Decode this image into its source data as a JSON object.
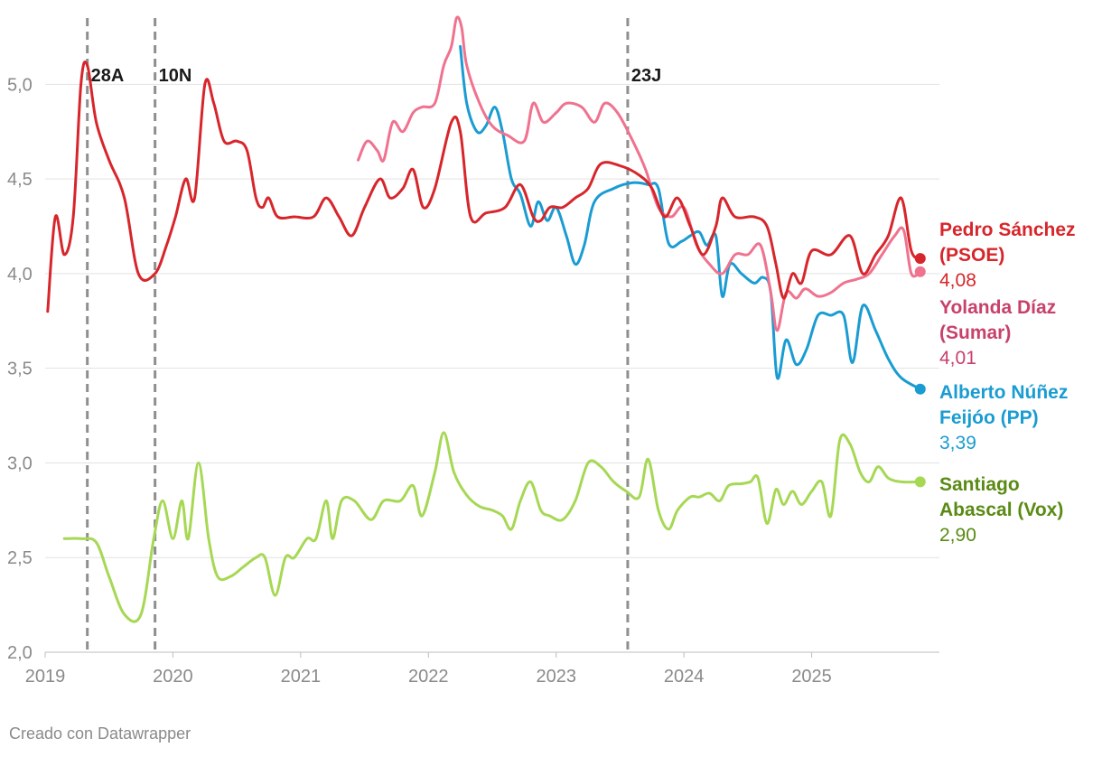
{
  "footer": {
    "credit": "Creado con Datawrapper"
  },
  "chart_data": {
    "type": "line",
    "ylim": [
      2.0,
      5.35
    ],
    "yticks": [
      {
        "value": 2.0,
        "label": "2,0"
      },
      {
        "value": 2.5,
        "label": "2,5"
      },
      {
        "value": 3.0,
        "label": "3,0"
      },
      {
        "value": 3.5,
        "label": "3,5"
      },
      {
        "value": 4.0,
        "label": "4,0"
      },
      {
        "value": 4.5,
        "label": "4,5"
      },
      {
        "value": 5.0,
        "label": "5,0"
      }
    ],
    "xlim": [
      2019.0,
      2026.0
    ],
    "xticks": [
      {
        "value": 2019,
        "label": "2019"
      },
      {
        "value": 2020,
        "label": "2020"
      },
      {
        "value": 2021,
        "label": "2021"
      },
      {
        "value": 2022,
        "label": "2022"
      },
      {
        "value": 2023,
        "label": "2023"
      },
      {
        "value": 2024,
        "label": "2024"
      },
      {
        "value": 2025,
        "label": "2025"
      }
    ],
    "grid": true,
    "events": [
      {
        "x": 2019.33,
        "label": "28A"
      },
      {
        "x": 2019.86,
        "label": "10N"
      },
      {
        "x": 2023.56,
        "label": "23J"
      }
    ],
    "series": [
      {
        "name": "Pedro Sánchez (PSOE)",
        "name_lines": [
          "Pedro Sánchez",
          "(PSOE)"
        ],
        "color": "#d7262b",
        "value_color": "#d7262b",
        "end_label": "4,08",
        "points": [
          [
            2019.02,
            3.8
          ],
          [
            2019.08,
            4.3
          ],
          [
            2019.15,
            4.1
          ],
          [
            2019.22,
            4.3
          ],
          [
            2019.28,
            5.0
          ],
          [
            2019.33,
            5.1
          ],
          [
            2019.4,
            4.8
          ],
          [
            2019.5,
            4.6
          ],
          [
            2019.62,
            4.4
          ],
          [
            2019.73,
            4.0
          ],
          [
            2019.86,
            4.0
          ],
          [
            2019.95,
            4.15
          ],
          [
            2020.02,
            4.3
          ],
          [
            2020.1,
            4.5
          ],
          [
            2020.17,
            4.4
          ],
          [
            2020.25,
            5.0
          ],
          [
            2020.32,
            4.9
          ],
          [
            2020.4,
            4.7
          ],
          [
            2020.5,
            4.7
          ],
          [
            2020.58,
            4.65
          ],
          [
            2020.65,
            4.4
          ],
          [
            2020.7,
            4.35
          ],
          [
            2020.75,
            4.4
          ],
          [
            2020.82,
            4.3
          ],
          [
            2020.95,
            4.3
          ],
          [
            2021.1,
            4.3
          ],
          [
            2021.2,
            4.4
          ],
          [
            2021.3,
            4.3
          ],
          [
            2021.4,
            4.2
          ],
          [
            2021.5,
            4.35
          ],
          [
            2021.62,
            4.5
          ],
          [
            2021.7,
            4.4
          ],
          [
            2021.8,
            4.45
          ],
          [
            2021.88,
            4.55
          ],
          [
            2021.96,
            4.35
          ],
          [
            2022.05,
            4.45
          ],
          [
            2022.18,
            4.8
          ],
          [
            2022.25,
            4.75
          ],
          [
            2022.33,
            4.3
          ],
          [
            2022.45,
            4.32
          ],
          [
            2022.6,
            4.35
          ],
          [
            2022.72,
            4.47
          ],
          [
            2022.82,
            4.3
          ],
          [
            2022.88,
            4.28
          ],
          [
            2022.95,
            4.35
          ],
          [
            2023.05,
            4.35
          ],
          [
            2023.15,
            4.4
          ],
          [
            2023.25,
            4.45
          ],
          [
            2023.35,
            4.58
          ],
          [
            2023.5,
            4.57
          ],
          [
            2023.65,
            4.52
          ],
          [
            2023.75,
            4.45
          ],
          [
            2023.85,
            4.3
          ],
          [
            2023.95,
            4.4
          ],
          [
            2024.05,
            4.25
          ],
          [
            2024.15,
            4.1
          ],
          [
            2024.25,
            4.25
          ],
          [
            2024.3,
            4.4
          ],
          [
            2024.4,
            4.3
          ],
          [
            2024.55,
            4.3
          ],
          [
            2024.65,
            4.25
          ],
          [
            2024.72,
            4.05
          ],
          [
            2024.78,
            3.87
          ],
          [
            2024.85,
            4.0
          ],
          [
            2024.92,
            3.95
          ],
          [
            2025.0,
            4.12
          ],
          [
            2025.15,
            4.1
          ],
          [
            2025.3,
            4.2
          ],
          [
            2025.4,
            4.0
          ],
          [
            2025.5,
            4.1
          ],
          [
            2025.6,
            4.2
          ],
          [
            2025.7,
            4.4
          ],
          [
            2025.78,
            4.12
          ],
          [
            2025.85,
            4.08
          ]
        ]
      },
      {
        "name": "Yolanda Díaz (Sumar)",
        "name_lines": [
          "Yolanda Díaz",
          "(Sumar)"
        ],
        "color": "#f0728f",
        "label_color": "#c8416a",
        "value_color": "#c8416a",
        "end_label": "4,01",
        "points": [
          [
            2021.45,
            4.6
          ],
          [
            2021.52,
            4.7
          ],
          [
            2021.6,
            4.65
          ],
          [
            2021.65,
            4.6
          ],
          [
            2021.72,
            4.8
          ],
          [
            2021.8,
            4.75
          ],
          [
            2021.88,
            4.85
          ],
          [
            2021.95,
            4.88
          ],
          [
            2022.05,
            4.9
          ],
          [
            2022.12,
            5.1
          ],
          [
            2022.18,
            5.2
          ],
          [
            2022.22,
            5.35
          ],
          [
            2022.26,
            5.3
          ],
          [
            2022.3,
            5.1
          ],
          [
            2022.4,
            4.9
          ],
          [
            2022.5,
            4.78
          ],
          [
            2022.62,
            4.73
          ],
          [
            2022.75,
            4.7
          ],
          [
            2022.82,
            4.9
          ],
          [
            2022.9,
            4.8
          ],
          [
            2023.0,
            4.85
          ],
          [
            2023.08,
            4.9
          ],
          [
            2023.2,
            4.88
          ],
          [
            2023.3,
            4.8
          ],
          [
            2023.38,
            4.9
          ],
          [
            2023.48,
            4.85
          ],
          [
            2023.6,
            4.7
          ],
          [
            2023.7,
            4.55
          ],
          [
            2023.8,
            4.35
          ],
          [
            2023.9,
            4.3
          ],
          [
            2024.0,
            4.35
          ],
          [
            2024.1,
            4.15
          ],
          [
            2024.2,
            4.05
          ],
          [
            2024.3,
            4.0
          ],
          [
            2024.4,
            4.1
          ],
          [
            2024.5,
            4.1
          ],
          [
            2024.6,
            4.15
          ],
          [
            2024.68,
            3.9
          ],
          [
            2024.73,
            3.7
          ],
          [
            2024.8,
            3.9
          ],
          [
            2024.88,
            3.87
          ],
          [
            2024.95,
            3.92
          ],
          [
            2025.05,
            3.88
          ],
          [
            2025.15,
            3.9
          ],
          [
            2025.25,
            3.95
          ],
          [
            2025.35,
            3.97
          ],
          [
            2025.45,
            4.0
          ],
          [
            2025.55,
            4.1
          ],
          [
            2025.65,
            4.2
          ],
          [
            2025.72,
            4.23
          ],
          [
            2025.78,
            4.0
          ],
          [
            2025.85,
            4.01
          ]
        ]
      },
      {
        "name": "Alberto Núñez Feijóo (PP)",
        "name_lines": [
          "Alberto Núñez",
          "Feijóo (PP)"
        ],
        "color": "#1a9cd3",
        "value_color": "#1a9cd3",
        "end_label": "3,39",
        "points": [
          [
            2022.25,
            5.2
          ],
          [
            2022.3,
            4.9
          ],
          [
            2022.38,
            4.75
          ],
          [
            2022.45,
            4.78
          ],
          [
            2022.52,
            4.88
          ],
          [
            2022.58,
            4.75
          ],
          [
            2022.65,
            4.5
          ],
          [
            2022.72,
            4.42
          ],
          [
            2022.8,
            4.25
          ],
          [
            2022.86,
            4.38
          ],
          [
            2022.93,
            4.28
          ],
          [
            2023.0,
            4.35
          ],
          [
            2023.08,
            4.2
          ],
          [
            2023.15,
            4.05
          ],
          [
            2023.22,
            4.15
          ],
          [
            2023.3,
            4.38
          ],
          [
            2023.45,
            4.45
          ],
          [
            2023.6,
            4.48
          ],
          [
            2023.72,
            4.47
          ],
          [
            2023.8,
            4.45
          ],
          [
            2023.88,
            4.16
          ],
          [
            2023.98,
            4.17
          ],
          [
            2024.05,
            4.2
          ],
          [
            2024.12,
            4.22
          ],
          [
            2024.18,
            4.15
          ],
          [
            2024.25,
            4.2
          ],
          [
            2024.3,
            3.88
          ],
          [
            2024.36,
            4.05
          ],
          [
            2024.45,
            4.0
          ],
          [
            2024.55,
            3.95
          ],
          [
            2024.62,
            3.98
          ],
          [
            2024.68,
            3.9
          ],
          [
            2024.73,
            3.45
          ],
          [
            2024.8,
            3.65
          ],
          [
            2024.88,
            3.52
          ],
          [
            2024.96,
            3.6
          ],
          [
            2025.05,
            3.78
          ],
          [
            2025.15,
            3.78
          ],
          [
            2025.25,
            3.78
          ],
          [
            2025.32,
            3.53
          ],
          [
            2025.4,
            3.83
          ],
          [
            2025.5,
            3.7
          ],
          [
            2025.6,
            3.55
          ],
          [
            2025.7,
            3.45
          ],
          [
            2025.85,
            3.39
          ]
        ]
      },
      {
        "name": "Santiago Abascal (Vox)",
        "name_lines": [
          "Santiago",
          "Abascal (Vox)"
        ],
        "color": "#a6d854",
        "label_color": "#5a8a13",
        "value_color": "#5a8a13",
        "end_label": "2,90",
        "points": [
          [
            2019.15,
            2.6
          ],
          [
            2019.28,
            2.6
          ],
          [
            2019.4,
            2.58
          ],
          [
            2019.5,
            2.4
          ],
          [
            2019.62,
            2.2
          ],
          [
            2019.75,
            2.2
          ],
          [
            2019.85,
            2.6
          ],
          [
            2019.92,
            2.8
          ],
          [
            2020.0,
            2.6
          ],
          [
            2020.07,
            2.8
          ],
          [
            2020.12,
            2.6
          ],
          [
            2020.2,
            3.0
          ],
          [
            2020.28,
            2.6
          ],
          [
            2020.35,
            2.4
          ],
          [
            2020.45,
            2.4
          ],
          [
            2020.55,
            2.45
          ],
          [
            2020.65,
            2.5
          ],
          [
            2020.72,
            2.5
          ],
          [
            2020.8,
            2.3
          ],
          [
            2020.88,
            2.5
          ],
          [
            2020.95,
            2.5
          ],
          [
            2021.05,
            2.6
          ],
          [
            2021.12,
            2.6
          ],
          [
            2021.2,
            2.8
          ],
          [
            2021.25,
            2.6
          ],
          [
            2021.32,
            2.8
          ],
          [
            2021.42,
            2.8
          ],
          [
            2021.55,
            2.7
          ],
          [
            2021.65,
            2.8
          ],
          [
            2021.78,
            2.8
          ],
          [
            2021.88,
            2.88
          ],
          [
            2021.95,
            2.72
          ],
          [
            2022.05,
            2.95
          ],
          [
            2022.12,
            3.16
          ],
          [
            2022.2,
            2.95
          ],
          [
            2022.3,
            2.83
          ],
          [
            2022.4,
            2.77
          ],
          [
            2022.5,
            2.75
          ],
          [
            2022.58,
            2.72
          ],
          [
            2022.65,
            2.65
          ],
          [
            2022.72,
            2.8
          ],
          [
            2022.8,
            2.9
          ],
          [
            2022.88,
            2.75
          ],
          [
            2022.95,
            2.72
          ],
          [
            2023.05,
            2.7
          ],
          [
            2023.15,
            2.8
          ],
          [
            2023.25,
            3.0
          ],
          [
            2023.35,
            2.98
          ],
          [
            2023.45,
            2.9
          ],
          [
            2023.55,
            2.85
          ],
          [
            2023.65,
            2.82
          ],
          [
            2023.72,
            3.02
          ],
          [
            2023.8,
            2.75
          ],
          [
            2023.88,
            2.65
          ],
          [
            2023.95,
            2.75
          ],
          [
            2024.05,
            2.82
          ],
          [
            2024.12,
            2.82
          ],
          [
            2024.2,
            2.84
          ],
          [
            2024.28,
            2.8
          ],
          [
            2024.35,
            2.88
          ],
          [
            2024.45,
            2.89
          ],
          [
            2024.52,
            2.9
          ],
          [
            2024.58,
            2.92
          ],
          [
            2024.65,
            2.68
          ],
          [
            2024.72,
            2.86
          ],
          [
            2024.78,
            2.78
          ],
          [
            2024.85,
            2.85
          ],
          [
            2024.92,
            2.78
          ],
          [
            2025.0,
            2.85
          ],
          [
            2025.08,
            2.9
          ],
          [
            2025.15,
            2.72
          ],
          [
            2025.22,
            3.12
          ],
          [
            2025.3,
            3.1
          ],
          [
            2025.38,
            2.95
          ],
          [
            2025.45,
            2.9
          ],
          [
            2025.52,
            2.98
          ],
          [
            2025.6,
            2.92
          ],
          [
            2025.7,
            2.9
          ],
          [
            2025.85,
            2.9
          ]
        ]
      }
    ]
  }
}
